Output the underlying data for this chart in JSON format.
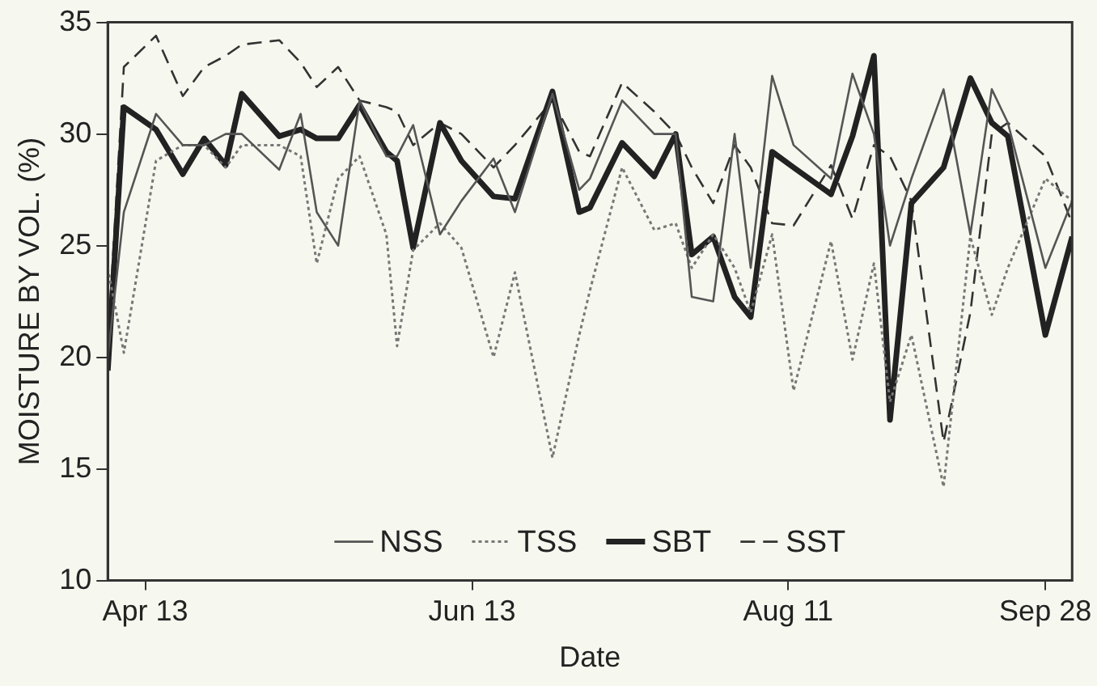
{
  "chart_data": {
    "type": "line",
    "xlabel": "Date",
    "ylabel": "MOISTURE BY VOL. (%)",
    "x": [
      "--04-06",
      "--04-09",
      "--04-15",
      "--04-20",
      "--04-24",
      "--04-28",
      "--05-01",
      "--05-08",
      "--05-12",
      "--05-15",
      "--05-19",
      "--05-23",
      "--05-28",
      "--05-30",
      "--06-02",
      "--06-07",
      "--06-11",
      "--06-17",
      "--06-21",
      "--06-28",
      "--07-03",
      "--07-05",
      "--07-11",
      "--07-17",
      "--07-21",
      "--07-24",
      "--07-28",
      "--08-01",
      "--08-04",
      "--08-08",
      "--08-12",
      "--08-19",
      "--08-23",
      "--08-27",
      "--08-30",
      "--09-03",
      "--09-09",
      "--09-14",
      "--09-18",
      "--09-21",
      "--09-28",
      "--10-03"
    ],
    "series": [
      {
        "name": "NSS",
        "color": "#555555",
        "line_style": "solid",
        "values": [
          20,
          26.5,
          30.9,
          29.5,
          29.5,
          30,
          30,
          28.4,
          30.9,
          26.5,
          25,
          31.5,
          29,
          29,
          30.4,
          25.5,
          27,
          28.9,
          26.5,
          31.8,
          27.5,
          28,
          31.5,
          30,
          30,
          22.7,
          22.5,
          30,
          24,
          32.6,
          29.5,
          28,
          32.7,
          30,
          25,
          28,
          32,
          25.5,
          32,
          30.5,
          24,
          27
        ]
      },
      {
        "name": "TSS",
        "color": "#777777",
        "line_style": "dotted",
        "values": [
          24,
          20.2,
          28.8,
          29.5,
          29.5,
          28.5,
          29.5,
          29.5,
          29,
          24.2,
          28,
          29,
          25.5,
          20.5,
          24.8,
          26,
          24.9,
          20,
          23.8,
          15.5,
          21,
          23,
          28.5,
          25.7,
          26,
          24,
          25.5,
          24,
          22,
          25.5,
          18.5,
          25.2,
          19.9,
          24.2,
          18,
          21,
          14.2,
          25.4,
          21.9,
          24,
          28,
          27
        ]
      },
      {
        "name": "SBT",
        "color": "#222222",
        "line_style": "solid",
        "values": [
          19.4,
          31.2,
          30.2,
          28.2,
          29.8,
          28.6,
          31.8,
          29.9,
          30.2,
          29.8,
          29.8,
          31.3,
          29.2,
          28.8,
          24.9,
          30.5,
          28.8,
          27.2,
          27.1,
          31.9,
          26.5,
          26.7,
          29.6,
          28.1,
          30,
          24.6,
          25.4,
          22.7,
          21.8,
          29.2,
          28.5,
          27.3,
          29.9,
          33.5,
          17.2,
          26.9,
          28.5,
          32.5,
          30.5,
          29.9,
          21,
          25.4
        ]
      },
      {
        "name": "SST",
        "color": "#333333",
        "line_style": "dashed",
        "values": [
          20.5,
          33,
          34.4,
          31.7,
          33,
          33.5,
          34,
          34.2,
          33.2,
          32.1,
          33,
          31.5,
          31.2,
          31,
          29.5,
          30.5,
          30,
          28.5,
          29.5,
          31.5,
          29.2,
          29,
          32.3,
          31,
          30,
          28.5,
          26.9,
          29.5,
          28.5,
          26,
          25.9,
          28.6,
          26.2,
          29.5,
          29,
          27,
          16.2,
          22,
          30,
          30.5,
          29,
          26
        ]
      }
    ],
    "xlim": [
      "--04-06",
      "--10-03"
    ],
    "xticks": [
      {
        "value": "--04-13",
        "label": "Apr 13"
      },
      {
        "value": "--06-13",
        "label": "Jun 13"
      },
      {
        "value": "--08-11",
        "label": "Aug 11"
      },
      {
        "value": "--09-28",
        "label": "Sep 28"
      }
    ],
    "ylim": [
      10,
      35
    ],
    "yticks": [
      10,
      15,
      20,
      25,
      30,
      35
    ],
    "grid": false,
    "legend": "bottom",
    "marker": "none"
  }
}
